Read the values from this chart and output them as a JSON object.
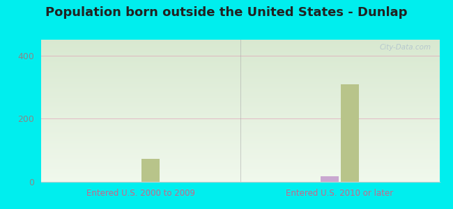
{
  "title": "Population born outside the United States - Dunlap",
  "background_color": "#00eeee",
  "plot_bg_top": "#d8e8d0",
  "plot_bg_bottom": "#f0f8ec",
  "groups": [
    "Entered U.S. 2000 to 2009",
    "Entered U.S. 2010 or later"
  ],
  "series": {
    "Native": {
      "color": "#c9a8d0",
      "values": [
        0,
        18
      ]
    },
    "Foreign-born": {
      "color": "#b8c48a",
      "values": [
        72,
        308
      ]
    }
  },
  "ylim": [
    0,
    450
  ],
  "yticks": [
    0,
    200,
    400
  ],
  "gridline_color": "#e0a0b8",
  "gridline_alpha": 0.6,
  "title_fontsize": 13,
  "label_fontsize": 8.5,
  "tick_fontsize": 9,
  "watermark": "City-Data.com",
  "bar_width": 0.18,
  "native_legend_color": "#c9a8d0",
  "foreign_legend_color": "#c8d4a0"
}
